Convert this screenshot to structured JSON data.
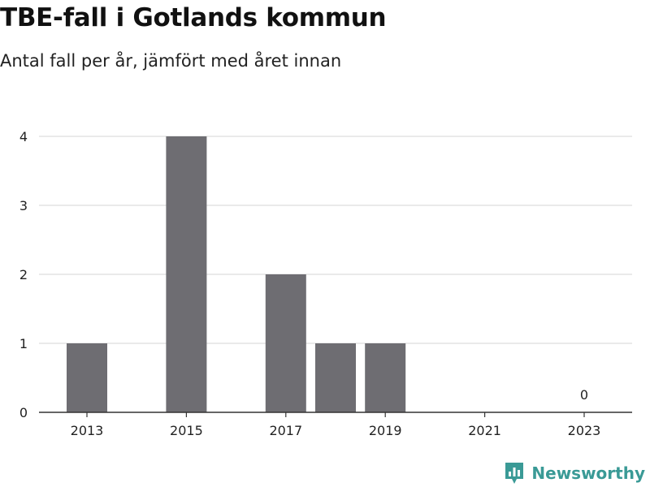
{
  "header": {
    "title": "TBE-fall i Gotlands kommun",
    "subtitle": "Antal fall per år, jämfört med året innan"
  },
  "brand": {
    "name": "Newsworthy",
    "icon": "newsworthy-logo-icon",
    "color": "#3a9a96"
  },
  "chart_data": {
    "type": "bar",
    "categories": [
      "2013",
      "2014",
      "2015",
      "2016",
      "2017",
      "2018",
      "2019",
      "2020",
      "2021",
      "2022",
      "2023"
    ],
    "values": [
      1,
      0,
      4,
      0,
      2,
      1,
      1,
      0,
      0,
      0,
      0
    ],
    "x_tick_labels": [
      "2013",
      "2015",
      "2017",
      "2019",
      "2021",
      "2023"
    ],
    "y_ticks": [
      0,
      1,
      2,
      3,
      4
    ],
    "ylim": [
      0,
      4
    ],
    "annotations": [
      {
        "category": "2023",
        "text": "0"
      }
    ],
    "xlabel": "",
    "ylabel": "",
    "grid": true,
    "bar_color": "#6e6d72",
    "grid_color": "#dddddd",
    "axis_color": "#333333"
  }
}
